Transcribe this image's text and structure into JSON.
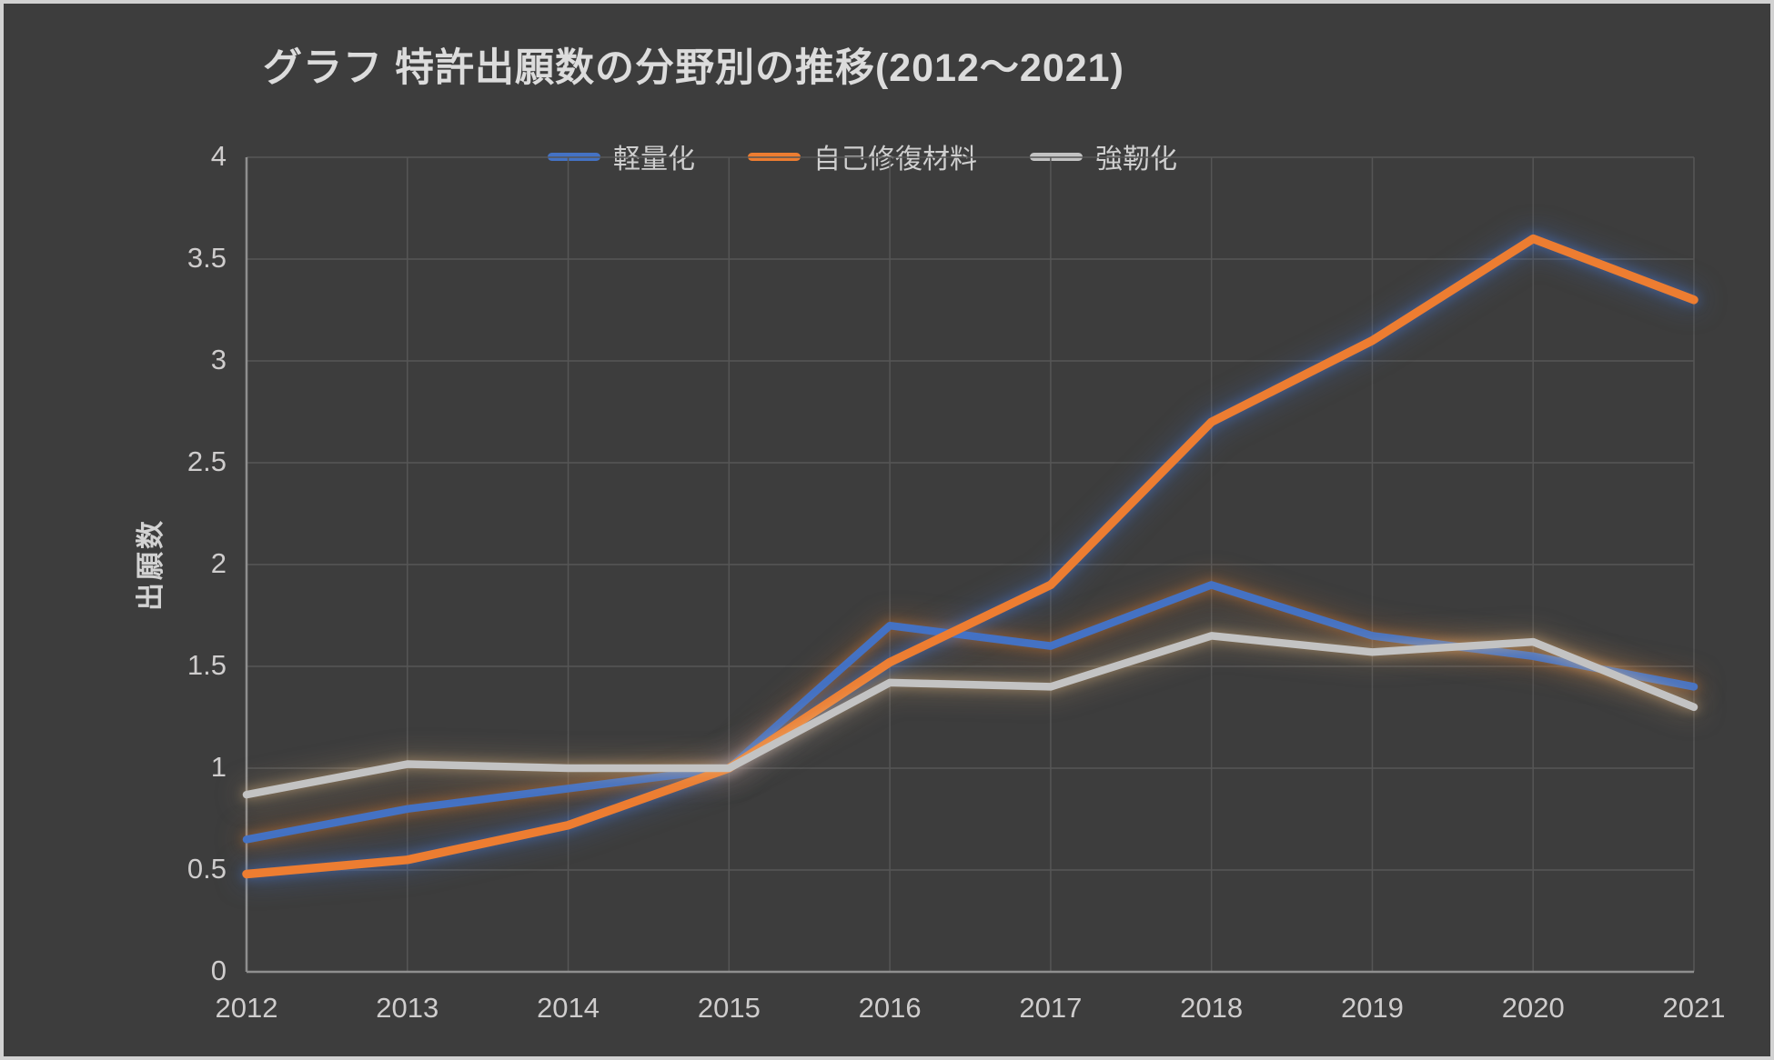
{
  "frame": {
    "background_color": "#3d3d3d",
    "border_color": "#d2d2d2"
  },
  "chart_data": {
    "type": "line",
    "title": "グラフ 特許出願数の分野別の推移(2012～2021)",
    "ylabel": "出願数",
    "xlabel": "",
    "categories": [
      "2012",
      "2013",
      "2014",
      "2015",
      "2016",
      "2017",
      "2018",
      "2019",
      "2020",
      "2021"
    ],
    "series": [
      {
        "name": "軽量化",
        "color": "#4472C4",
        "glow_color": "rgba(210,120,50,0.55)",
        "values": [
          0.65,
          0.8,
          0.9,
          1.0,
          1.7,
          1.6,
          1.9,
          1.65,
          1.55,
          1.4
        ]
      },
      {
        "name": "自己修復材料",
        "color": "#ED7D31",
        "glow_color": "rgba(70,115,200,0.6)",
        "values": [
          0.48,
          0.55,
          0.72,
          1.0,
          1.52,
          1.9,
          2.7,
          3.1,
          3.6,
          3.3
        ]
      },
      {
        "name": "強靭化",
        "color": "#C3C3C3",
        "glow_color": "rgba(230,185,130,0.5)",
        "values": [
          0.87,
          1.02,
          1.0,
          1.0,
          1.42,
          1.4,
          1.65,
          1.57,
          1.62,
          1.3
        ]
      }
    ],
    "y_ticks": [
      0,
      0.5,
      1,
      1.5,
      2,
      2.5,
      3,
      3.5,
      4
    ],
    "y_tick_labels": [
      "0",
      "0.5",
      "1",
      "1.5",
      "2",
      "2.5",
      "3",
      "3.5",
      "4"
    ],
    "ylim": [
      0,
      4
    ],
    "grid": true,
    "legend_position": "top-center",
    "grid_color": "#565656",
    "axis_color": "#8f8f8f",
    "tick_label_color": "#cfcdcd"
  }
}
